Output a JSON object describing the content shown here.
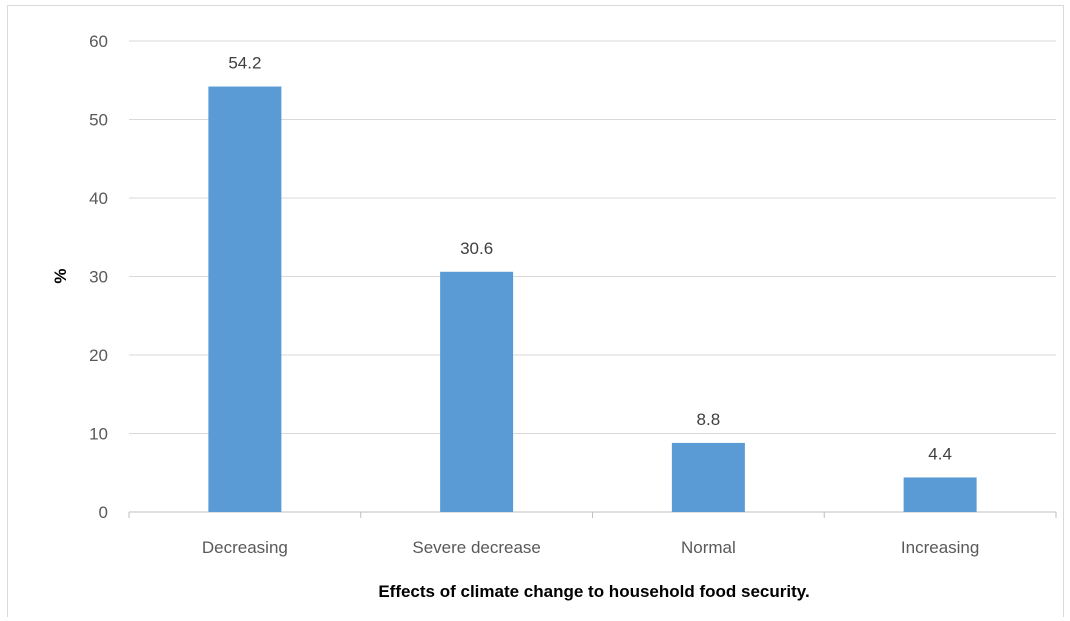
{
  "chart_data": {
    "type": "bar",
    "title": "",
    "xlabel": "Effects of climate change to household food security.",
    "ylabel": "%",
    "categories": [
      "Decreasing",
      "Severe decrease",
      "Normal",
      "Increasing"
    ],
    "values": [
      54.2,
      30.6,
      8.8,
      4.4
    ],
    "data_labels": [
      "54.2",
      "30.6",
      "8.8",
      "4.4"
    ],
    "ylim": [
      0,
      60
    ],
    "yticks": [
      0,
      10,
      20,
      30,
      40,
      50,
      60
    ],
    "grid": true,
    "legend": "none",
    "colors": {
      "bar": "#5b9bd5",
      "grid": "#d9d9d9"
    }
  }
}
